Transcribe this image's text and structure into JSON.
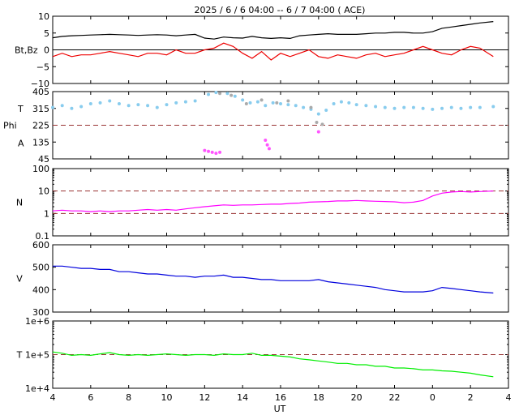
{
  "title": "2025 /  6 /  6   04:00 -- 6 /  7   04:00 ( ACE)",
  "chart_data": [
    {
      "type": "line",
      "panel": "magnetic-field",
      "ylabel": "Bt,Bz",
      "ylim": [
        -10,
        10
      ],
      "yticks": [
        "10",
        "5",
        "0",
        "−5",
        "−10"
      ],
      "yticks_values": [
        10,
        5,
        0,
        -5,
        -10
      ],
      "reference_lines": [
        0
      ],
      "series": [
        {
          "color": "#000000",
          "x": [
            4.0,
            4.5,
            5,
            5.5,
            6,
            6.5,
            7,
            7.5,
            8,
            8.5,
            9,
            9.5,
            10,
            10.5,
            11,
            11.5,
            12,
            12.5,
            13,
            13.5,
            14,
            14.5,
            15,
            15.5,
            16,
            16.5,
            17,
            17.5,
            18,
            18.5,
            19,
            19.5,
            20,
            20.5,
            21,
            21.5,
            22,
            22.5,
            23,
            23.5,
            24,
            24.5,
            25,
            25.5,
            26,
            26.5,
            27.2
          ],
          "values": [
            3.6,
            4.0,
            4.2,
            4.3,
            4.4,
            4.5,
            4.6,
            4.5,
            4.4,
            4.3,
            4.4,
            4.5,
            4.4,
            4.2,
            4.4,
            4.6,
            3.5,
            3.2,
            3.8,
            3.6,
            3.5,
            4.0,
            3.6,
            3.4,
            3.6,
            3.4,
            4.2,
            4.4,
            4.6,
            4.8,
            4.6,
            4.6,
            4.6,
            4.8,
            5.0,
            5.0,
            5.2,
            5.2,
            5.0,
            5.0,
            5.4,
            6.4,
            6.8,
            7.2,
            7.6,
            8.0,
            8.4
          ]
        },
        {
          "color": "#ee0000",
          "x": [
            4.0,
            4.5,
            5,
            5.5,
            6,
            6.5,
            7,
            7.5,
            8,
            8.5,
            9,
            9.5,
            10,
            10.5,
            11,
            11.5,
            12,
            12.5,
            13,
            13.5,
            14,
            14.5,
            15,
            15.5,
            16,
            16.5,
            17,
            17.5,
            18,
            18.5,
            19,
            19.5,
            20,
            20.5,
            21,
            21.5,
            22,
            22.5,
            23,
            23.5,
            24,
            24.5,
            25,
            25.5,
            26,
            26.5,
            27.2
          ],
          "values": [
            -2,
            -1,
            -2,
            -1.5,
            -1.5,
            -1,
            -0.5,
            -1,
            -1.5,
            -2,
            -1,
            -1,
            -1.5,
            0,
            -1,
            -1,
            0,
            0.5,
            2,
            1,
            -1,
            -2.5,
            -0.5,
            -3,
            -1,
            -2,
            -1,
            0,
            -2,
            -2.5,
            -1.5,
            -2,
            -2.5,
            -1.5,
            -1,
            -2,
            -1.5,
            -1,
            0,
            1,
            0,
            -1,
            -1.5,
            0,
            1,
            0.5,
            -2
          ]
        }
      ]
    },
    {
      "type": "scatter",
      "panel": "angles",
      "ylabel_lines": [
        "T",
        "Phi",
        "A"
      ],
      "ylim": [
        45,
        405
      ],
      "yticks": [
        "405",
        "315",
        "225",
        "135",
        "45"
      ],
      "yticks_values": [
        405,
        315,
        225,
        135,
        45
      ],
      "reference_lines": [
        225
      ],
      "series": [
        {
          "color": "#88ccee",
          "x": [
            4.0,
            4.5,
            5,
            5.5,
            6,
            6.5,
            7,
            7.5,
            8,
            8.5,
            9,
            9.5,
            10,
            10.5,
            11,
            11.5,
            12.2,
            12.6,
            13.2,
            13.6,
            14,
            14.4,
            14.8,
            15.2,
            15.6,
            16,
            16.4,
            16.8,
            17.2,
            17.6,
            18,
            18.4,
            18.8,
            19.2,
            19.6,
            20,
            20.5,
            21,
            21.5,
            22,
            22.5,
            23,
            23.5,
            24,
            24.5,
            25,
            25.5,
            26,
            26.5,
            27.2
          ],
          "values": [
            320,
            330,
            315,
            325,
            340,
            345,
            355,
            340,
            330,
            335,
            330,
            320,
            335,
            345,
            350,
            355,
            390,
            400,
            395,
            380,
            360,
            345,
            350,
            330,
            345,
            340,
            335,
            330,
            320,
            310,
            285,
            305,
            340,
            350,
            345,
            335,
            330,
            325,
            320,
            315,
            320,
            320,
            315,
            310,
            315,
            320,
            315,
            320,
            320,
            325
          ]
        },
        {
          "color": "#ff55ff",
          "x": [
            12.0,
            12.2,
            12.4,
            12.6,
            12.8,
            15.2,
            15.3,
            15.4,
            18.0
          ],
          "values": [
            90,
            85,
            80,
            75,
            80,
            145,
            120,
            100,
            190
          ]
        },
        {
          "color": "#aaaaaa",
          "x": [
            12.8,
            13.4,
            14.2,
            15.0,
            15.8,
            16.4,
            17.6,
            17.9,
            18.2
          ],
          "values": [
            395,
            385,
            340,
            360,
            345,
            355,
            320,
            240,
            230
          ]
        }
      ]
    },
    {
      "type": "line",
      "panel": "density",
      "ylabel": "N",
      "yscale": "log",
      "ylim": [
        0.1,
        100
      ],
      "yticks": [
        "100",
        "10",
        "1",
        "0.1"
      ],
      "yticks_values": [
        100,
        10,
        1,
        0.1
      ],
      "reference_lines": [
        10,
        1
      ],
      "series": [
        {
          "color": "#ff00ff",
          "x": [
            4.0,
            4.5,
            5,
            5.5,
            6,
            6.5,
            7,
            7.5,
            8,
            8.5,
            9,
            9.5,
            10,
            10.5,
            11,
            11.5,
            12,
            12.5,
            13,
            13.5,
            14,
            14.5,
            15,
            15.5,
            16,
            16.5,
            17,
            17.5,
            18,
            18.5,
            19,
            19.5,
            20,
            20.5,
            21,
            21.5,
            22,
            22.5,
            23,
            23.5,
            24,
            24.5,
            25,
            25.5,
            26,
            26.5,
            27.2
          ],
          "values": [
            1.3,
            1.4,
            1.3,
            1.3,
            1.2,
            1.3,
            1.2,
            1.3,
            1.3,
            1.4,
            1.5,
            1.4,
            1.5,
            1.4,
            1.6,
            1.8,
            2.0,
            2.2,
            2.4,
            2.3,
            2.4,
            2.4,
            2.5,
            2.6,
            2.6,
            2.8,
            2.9,
            3.2,
            3.3,
            3.4,
            3.6,
            3.6,
            3.8,
            3.6,
            3.5,
            3.4,
            3.3,
            3.0,
            3.2,
            3.8,
            6.0,
            8.0,
            9.0,
            9.5,
            9.0,
            9.5,
            10.0
          ]
        }
      ]
    },
    {
      "type": "line",
      "panel": "speed",
      "ylabel": "V",
      "ylim": [
        300,
        600
      ],
      "yticks": [
        "600",
        "500",
        "400",
        "300"
      ],
      "yticks_values": [
        600,
        500,
        400,
        300
      ],
      "series": [
        {
          "color": "#0000dd",
          "x": [
            4.0,
            4.5,
            5,
            5.5,
            6,
            6.5,
            7,
            7.5,
            8,
            8.5,
            9,
            9.5,
            10,
            10.5,
            11,
            11.5,
            12,
            12.5,
            13,
            13.5,
            14,
            14.5,
            15,
            15.5,
            16,
            16.5,
            17,
            17.5,
            18,
            18.5,
            19,
            19.5,
            20,
            20.5,
            21,
            21.5,
            22,
            22.5,
            23,
            23.5,
            24,
            24.5,
            25,
            25.5,
            26,
            26.5,
            27.2
          ],
          "values": [
            505,
            505,
            500,
            495,
            495,
            490,
            490,
            480,
            480,
            475,
            470,
            470,
            465,
            460,
            460,
            455,
            460,
            460,
            465,
            455,
            455,
            450,
            445,
            445,
            440,
            440,
            440,
            440,
            445,
            435,
            430,
            425,
            420,
            415,
            410,
            400,
            395,
            390,
            390,
            390,
            395,
            410,
            405,
            400,
            395,
            390,
            385
          ]
        }
      ]
    },
    {
      "type": "line",
      "panel": "temperature",
      "ylabel": "T",
      "yscale": "log",
      "ylim": [
        10000,
        1000000
      ],
      "yticks": [
        "1e+6",
        "1e+5",
        "1e+4"
      ],
      "yticks_values": [
        1000000,
        100000,
        10000
      ],
      "reference_lines": [
        100000
      ],
      "series": [
        {
          "color": "#00ee00",
          "x": [
            4.0,
            4.5,
            5,
            5.5,
            6,
            6.5,
            7,
            7.5,
            8,
            8.5,
            9,
            9.5,
            10,
            10.5,
            11,
            11.5,
            12,
            12.5,
            13,
            13.5,
            14,
            14.5,
            15,
            15.5,
            16,
            16.5,
            17,
            17.5,
            18,
            18.5,
            19,
            19.5,
            20,
            20.5,
            21,
            21.5,
            22,
            22.5,
            23,
            23.5,
            24,
            24.5,
            25,
            25.5,
            26,
            26.5,
            27.2
          ],
          "values": [
            120000,
            110000,
            95000,
            100000,
            95000,
            105000,
            115000,
            100000,
            95000,
            100000,
            95000,
            100000,
            105000,
            100000,
            95000,
            100000,
            100000,
            95000,
            105000,
            100000,
            100000,
            110000,
            95000,
            95000,
            90000,
            85000,
            75000,
            70000,
            65000,
            60000,
            55000,
            55000,
            50000,
            50000,
            45000,
            45000,
            40000,
            40000,
            38000,
            35000,
            35000,
            33000,
            32000,
            30000,
            28000,
            25000,
            22000
          ]
        }
      ]
    }
  ],
  "x_axis": {
    "label": "UT",
    "xlim": [
      4,
      28
    ],
    "ticks": [
      "4",
      "6",
      "8",
      "10",
      "12",
      "14",
      "16",
      "18",
      "20",
      "22",
      "0",
      "2",
      "4"
    ],
    "tick_values": [
      4,
      6,
      8,
      10,
      12,
      14,
      16,
      18,
      20,
      22,
      24,
      26,
      28
    ]
  }
}
